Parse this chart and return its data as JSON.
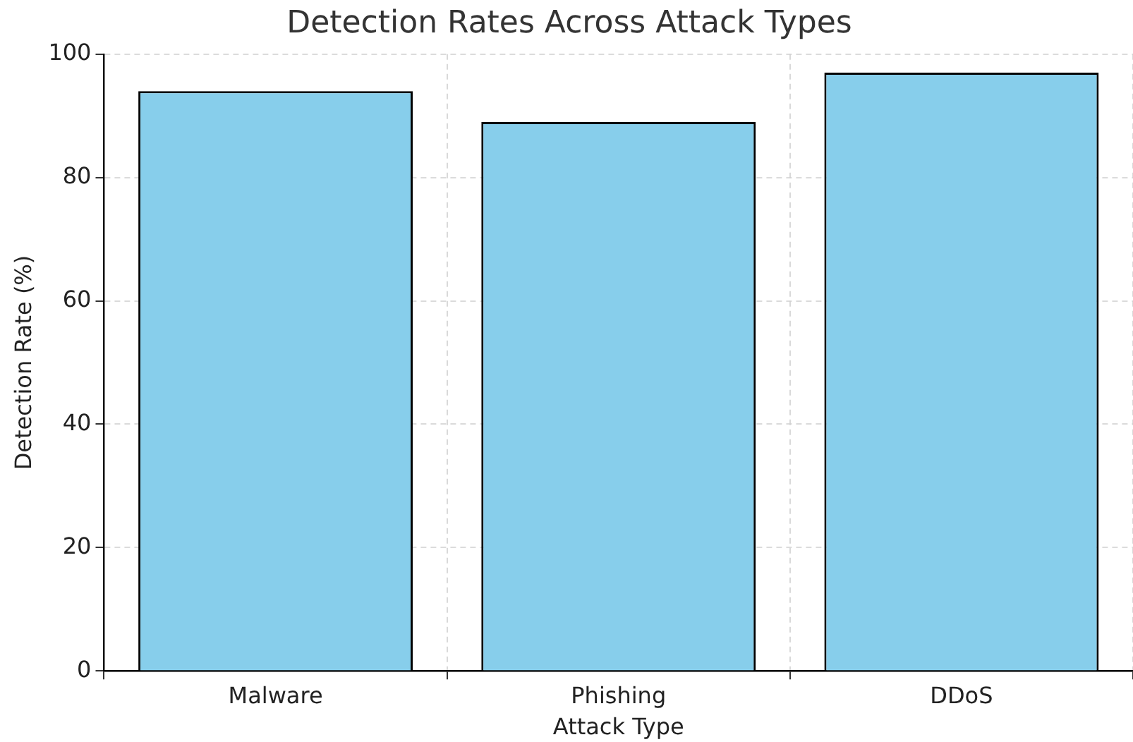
{
  "chart_data": {
    "type": "bar",
    "title": "Detection Rates Across Attack Types",
    "xlabel": "Attack Type",
    "ylabel": "Detection Rate (%)",
    "categories": [
      "Malware",
      "Phishing",
      "DDoS"
    ],
    "values": [
      94,
      89,
      97
    ],
    "color": "#87ceeb",
    "ylim": [
      0,
      100
    ],
    "yticks": [
      0,
      20,
      40,
      60,
      80,
      100
    ],
    "grid": true
  }
}
